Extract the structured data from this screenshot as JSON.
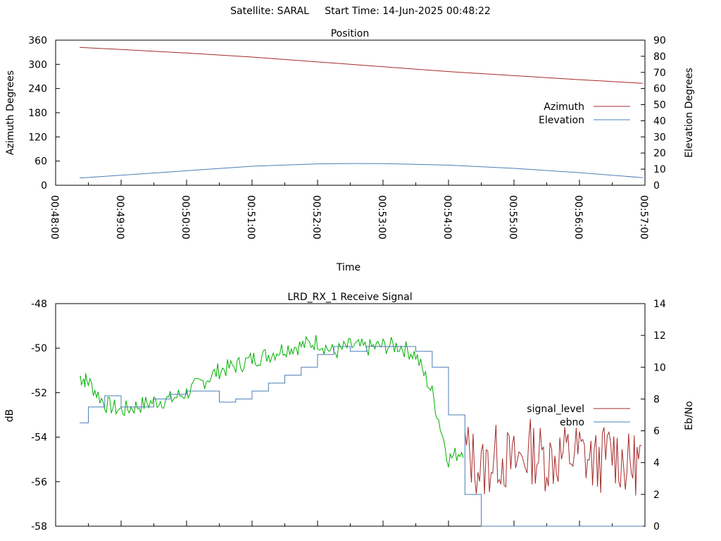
{
  "header": {
    "title": "Satellite: SARAL     Start Time: 14-Jun-2025 00:48:22"
  },
  "colors": {
    "azimuth": "#a52a2a",
    "elevation": "#4a7fb5",
    "signal_level": "#a52a2a",
    "ebno": "#4a7fb5",
    "signal_level_strong": "#00b000",
    "axis": "#000000"
  },
  "chart_data": [
    {
      "type": "line",
      "title": "Position",
      "xlabel": "Time",
      "ylabel": "Azimuth Degrees",
      "y2label": "Elevation Degrees",
      "xlim": [
        "00:48:00",
        "00:57:00"
      ],
      "ylim": [
        0,
        360
      ],
      "y2lim": [
        0,
        90
      ],
      "x_ticks": [
        "00:48:00",
        "00:49:00",
        "00:50:00",
        "00:51:00",
        "00:52:00",
        "00:53:00",
        "00:54:00",
        "00:55:00",
        "00:56:00",
        "00:57:00"
      ],
      "y_ticks": [
        0,
        60,
        120,
        180,
        240,
        300,
        360
      ],
      "y2_ticks": [
        0,
        10,
        20,
        30,
        40,
        50,
        60,
        70,
        80,
        90
      ],
      "legend_position": "right",
      "x": [
        "00:48:22",
        "00:49:00",
        "00:50:00",
        "00:51:00",
        "00:52:00",
        "00:52:30",
        "00:53:00",
        "00:54:00",
        "00:55:00",
        "00:56:00",
        "00:56:58"
      ],
      "series": [
        {
          "name": "Azimuth",
          "axis": "left",
          "values": [
            342,
            337,
            328,
            318,
            306,
            300,
            294,
            282,
            272,
            262,
            253
          ]
        },
        {
          "name": "Elevation",
          "axis": "right",
          "values": [
            4.5,
            6.2,
            9.0,
            11.8,
            13.3,
            13.5,
            13.4,
            12.5,
            10.5,
            7.8,
            4.7
          ]
        }
      ]
    },
    {
      "type": "line",
      "title": "LRD_RX_1 Receive Signal",
      "ylabel": "dB",
      "y2label": "Eb/No",
      "ylim": [
        -58,
        -48
      ],
      "y2lim": [
        0,
        14
      ],
      "y_ticks": [
        -58,
        -56,
        -54,
        -52,
        -50,
        -48
      ],
      "y2_ticks": [
        0,
        2,
        4,
        6,
        8,
        10,
        12,
        14
      ],
      "legend_position": "right",
      "legend": [
        "signal_level",
        "ebno"
      ],
      "x": [
        "00:48:22",
        "00:48:30",
        "00:48:45",
        "00:49:00",
        "00:49:15",
        "00:49:30",
        "00:49:45",
        "00:50:00",
        "00:50:15",
        "00:50:30",
        "00:50:45",
        "00:51:00",
        "00:51:15",
        "00:51:30",
        "00:51:45",
        "00:52:00",
        "00:52:15",
        "00:52:30",
        "00:52:45",
        "00:53:00",
        "00:53:15",
        "00:53:30",
        "00:53:45",
        "00:54:00",
        "00:54:15",
        "00:54:30",
        "00:54:45",
        "00:55:00",
        "00:55:15",
        "00:55:30",
        "00:55:45",
        "00:56:00",
        "00:56:15",
        "00:56:30",
        "00:56:45",
        "00:56:58"
      ],
      "series": [
        {
          "name": "signal_level",
          "axis": "left",
          "values": [
            -51.3,
            -51.5,
            -52.5,
            -52.8,
            -52.6,
            -52.4,
            -52.3,
            -52.0,
            -51.5,
            -51.0,
            -50.8,
            -50.5,
            -50.3,
            -50.0,
            -49.9,
            -49.7,
            -50.2,
            -49.9,
            -50.0,
            -49.9,
            -49.9,
            -50.3,
            -52.0,
            -55.0,
            -54.5,
            -55.5,
            -54.8,
            -55.2,
            -54.6,
            -55.0,
            -54.8,
            -54.7,
            -55.2,
            -54.6,
            -55.3,
            -55.0
          ]
        },
        {
          "name": "ebno",
          "axis": "right",
          "values": [
            6.5,
            7.5,
            8.2,
            7.5,
            7.5,
            8.0,
            8.3,
            8.5,
            8.5,
            7.8,
            8.0,
            8.5,
            9.0,
            9.5,
            10.0,
            10.8,
            11.3,
            11.0,
            11.3,
            11.3,
            11.3,
            11.0,
            10.0,
            7.0,
            2.0,
            0.0,
            0.0,
            0.0,
            0.0,
            0.0,
            0.0,
            0.0,
            0.0,
            0.0,
            0.0,
            0.0
          ]
        }
      ]
    }
  ]
}
